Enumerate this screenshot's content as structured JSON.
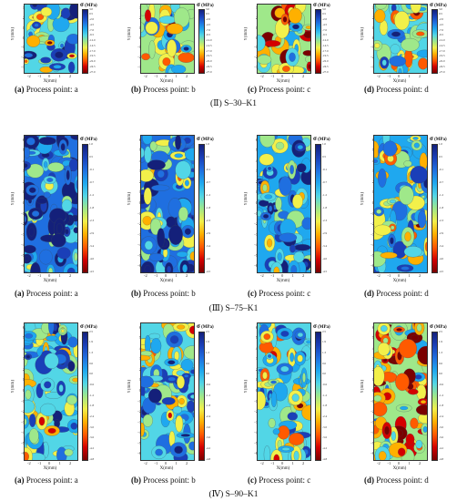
{
  "figure": {
    "groups": [
      {
        "label": "(Ⅱ) S–30–K1",
        "y_ticks": [
          "3",
          "2",
          "1",
          "0",
          "-1",
          "-2",
          "-3"
        ],
        "x_ticks": [
          "-2",
          "-1",
          "0",
          "1",
          "2"
        ],
        "colorbar_ticks": [
          "3.0",
          "0.5",
          "-2.0",
          "-4.5",
          "-7.0",
          "-9.5",
          "-12.0",
          "-14.5",
          "-17.0",
          "-19.5",
          "-22.0",
          "-24.5",
          "-27.0"
        ],
        "panels": [
          {
            "letter": "(a)",
            "text": " Process point: a"
          },
          {
            "letter": "(b)",
            "text": " Process point: b"
          },
          {
            "letter": "(c)",
            "text": " Process point: c"
          },
          {
            "letter": "(d)",
            "text": " Process point: d"
          }
        ]
      },
      {
        "label": "(Ⅲ) S–75–K1",
        "y_ticks": [
          "6",
          "5",
          "4",
          "3",
          "2",
          "1",
          "0",
          "-1",
          "-2",
          "-3",
          "-4",
          "-5",
          "-6"
        ],
        "x_ticks": [
          "-2",
          "-1",
          "0",
          "1",
          "2"
        ],
        "colorbar_ticks": [
          "1.0",
          "0.5",
          "-0.1",
          "-0.7",
          "-1.2",
          "-1.8",
          "-2.3",
          "-2.9",
          "-3.4",
          "-4.0",
          "-4.5"
        ],
        "panels": [
          {
            "letter": "(a)",
            "text": " Process point: a"
          },
          {
            "letter": "(b)",
            "text": " Process point: b"
          },
          {
            "letter": "(c)",
            "text": " Process point: c"
          },
          {
            "letter": "(d)",
            "text": " Process point: d"
          }
        ]
      },
      {
        "label": "(Ⅳ) S–90–K1",
        "y_ticks": [
          "6",
          "5",
          "4",
          "3",
          "2",
          "1",
          "0",
          "-1",
          "-2",
          "-3",
          "-4",
          "-5",
          "-6"
        ],
        "x_ticks": [
          "-2",
          "-1",
          "0",
          "1",
          "2"
        ],
        "colorbar_ticks": [
          "2.5",
          "1.9",
          "1.3",
          "0.6",
          "0.0",
          "-0.6",
          "-1.2",
          "-1.8",
          "-2.4",
          "-3.0",
          "-3.6",
          "-4.2",
          "-4.8"
        ],
        "panels": [
          {
            "letter": "(a)",
            "text": " Process point: a"
          },
          {
            "letter": "(b)",
            "text": " Process point: b"
          },
          {
            "letter": "(c)",
            "text": " Process point: c"
          },
          {
            "letter": "(d)",
            "text": " Process point: d"
          }
        ]
      }
    ],
    "y_label": "Y(mm)",
    "x_label": "X(mm)",
    "colorbar_symbol": "σ",
    "colorbar_unit": "(MPa)",
    "colormap": [
      "#7a0000",
      "#d40000",
      "#ff5a00",
      "#ffb000",
      "#f2f04a",
      "#9fe88a",
      "#52d6e6",
      "#1fa8ef",
      "#1f6fe0",
      "#1a3fb8",
      "#14207a"
    ]
  }
}
